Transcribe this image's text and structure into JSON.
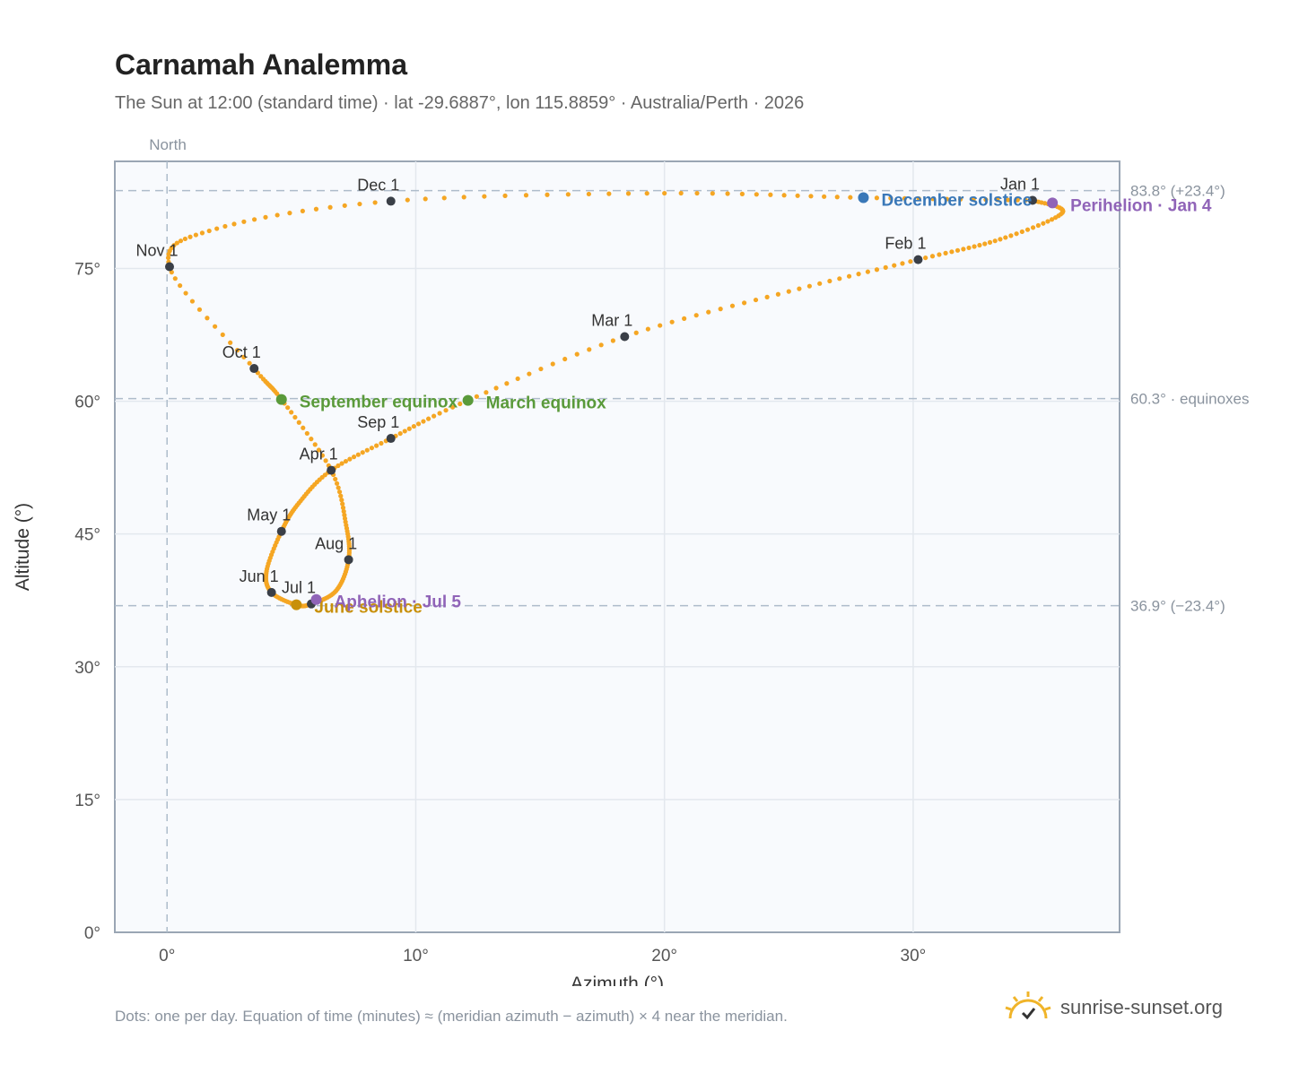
{
  "header": {
    "title": "Carnamah Analemma",
    "subtitle": "The Sun at 12:00 (standard time) · lat -29.6887°, lon 115.8859° · Australia/Perth · 2026"
  },
  "footer": {
    "note": "Dots: one per day. Equation of time (minutes) ≈ (meridian azimuth − azimuth) × 4 near the meridian.",
    "brand": "sunrise-sunset.org",
    "brand_icon": "sun-icon"
  },
  "colors": {
    "path": "#f5a623",
    "month_marker": "#3a3f47",
    "equinox": "#5a9a3a",
    "december_solstice": "#3a78b8",
    "june_solstice": "#c8900a",
    "apsis": "#9064b8",
    "plot_bg": "#f8fafd",
    "grid": "#e3e8ee",
    "axis": "#9aa6b4"
  },
  "chart_data": {
    "type": "scatter",
    "xlabel": "Azimuth (°)",
    "ylabel": "Altitude (°)",
    "xlim": [
      -2.1,
      38.3
    ],
    "ylim": [
      0,
      87.1
    ],
    "xticks": [
      0,
      10,
      20,
      30
    ],
    "yticks": [
      0,
      15,
      30,
      45,
      60,
      75
    ],
    "tick_suffix": "°",
    "grid": true,
    "north_label": "North",
    "north_azimuth": 0,
    "reference_lines": [
      {
        "altitude": 83.8,
        "label": "83.8° (+23.4°)"
      },
      {
        "altitude": 60.3,
        "label": "60.3° · equinoxes"
      },
      {
        "altitude": 36.9,
        "label": "36.9° (−23.4°)"
      }
    ],
    "month_markers": [
      {
        "label": "Jan 1",
        "az": 34.8,
        "alt": 82.7
      },
      {
        "label": "Feb 1",
        "az": 30.2,
        "alt": 76.0
      },
      {
        "label": "Mar 1",
        "az": 18.4,
        "alt": 67.3
      },
      {
        "label": "Apr 1",
        "az": 6.6,
        "alt": 52.2
      },
      {
        "label": "May 1",
        "az": 4.6,
        "alt": 45.3
      },
      {
        "label": "Jun 1",
        "az": 4.2,
        "alt": 38.4
      },
      {
        "label": "Jul 1",
        "az": 5.8,
        "alt": 37.1
      },
      {
        "label": "Aug 1",
        "az": 7.3,
        "alt": 42.1
      },
      {
        "label": "Sep 1",
        "az": 9.0,
        "alt": 55.8
      },
      {
        "label": "Oct 1",
        "az": 3.5,
        "alt": 63.7
      },
      {
        "label": "Nov 1",
        "az": 0.1,
        "alt": 75.2
      },
      {
        "label": "Dec 1",
        "az": 9.0,
        "alt": 82.6
      }
    ],
    "events": [
      {
        "label": "December solstice",
        "az": 28.0,
        "alt": 83.0,
        "kind": "december_solstice"
      },
      {
        "label": "Perihelion · Jan 4",
        "az": 35.6,
        "alt": 82.4,
        "kind": "apsis"
      },
      {
        "label": "March equinox",
        "az": 12.1,
        "alt": 60.1,
        "kind": "equinox"
      },
      {
        "label": "September equinox",
        "az": 4.6,
        "alt": 60.2,
        "kind": "equinox"
      },
      {
        "label": "June solstice",
        "az": 5.2,
        "alt": 37.0,
        "kind": "june_solstice"
      },
      {
        "label": "Aphelion · Jul 5",
        "az": 6.0,
        "alt": 37.6,
        "kind": "apsis"
      }
    ],
    "daily_path_anchors": [
      {
        "az": 34.8,
        "alt": 82.7
      },
      {
        "az": 36.0,
        "alt": 81.3
      },
      {
        "az": 33.5,
        "alt": 78.3
      },
      {
        "az": 30.2,
        "alt": 76.0
      },
      {
        "az": 25.0,
        "alt": 72.4
      },
      {
        "az": 18.4,
        "alt": 67.3
      },
      {
        "az": 12.1,
        "alt": 60.1
      },
      {
        "az": 9.0,
        "alt": 55.8
      },
      {
        "az": 6.6,
        "alt": 52.2
      },
      {
        "az": 5.3,
        "alt": 48.5
      },
      {
        "az": 4.6,
        "alt": 45.3
      },
      {
        "az": 4.0,
        "alt": 40.8
      },
      {
        "az": 4.2,
        "alt": 38.4
      },
      {
        "az": 5.2,
        "alt": 37.0
      },
      {
        "az": 5.8,
        "alt": 37.1
      },
      {
        "az": 6.8,
        "alt": 38.6
      },
      {
        "az": 7.3,
        "alt": 42.1
      },
      {
        "az": 7.2,
        "alt": 46.0
      },
      {
        "az": 6.6,
        "alt": 52.2
      },
      {
        "az": 4.6,
        "alt": 60.2
      },
      {
        "az": 3.5,
        "alt": 63.7
      },
      {
        "az": 0.1,
        "alt": 75.2
      },
      {
        "az": 2.0,
        "alt": 79.5
      },
      {
        "az": 9.0,
        "alt": 82.6
      },
      {
        "az": 20.0,
        "alt": 83.5
      },
      {
        "az": 28.0,
        "alt": 83.0
      },
      {
        "az": 34.8,
        "alt": 82.7
      }
    ]
  }
}
